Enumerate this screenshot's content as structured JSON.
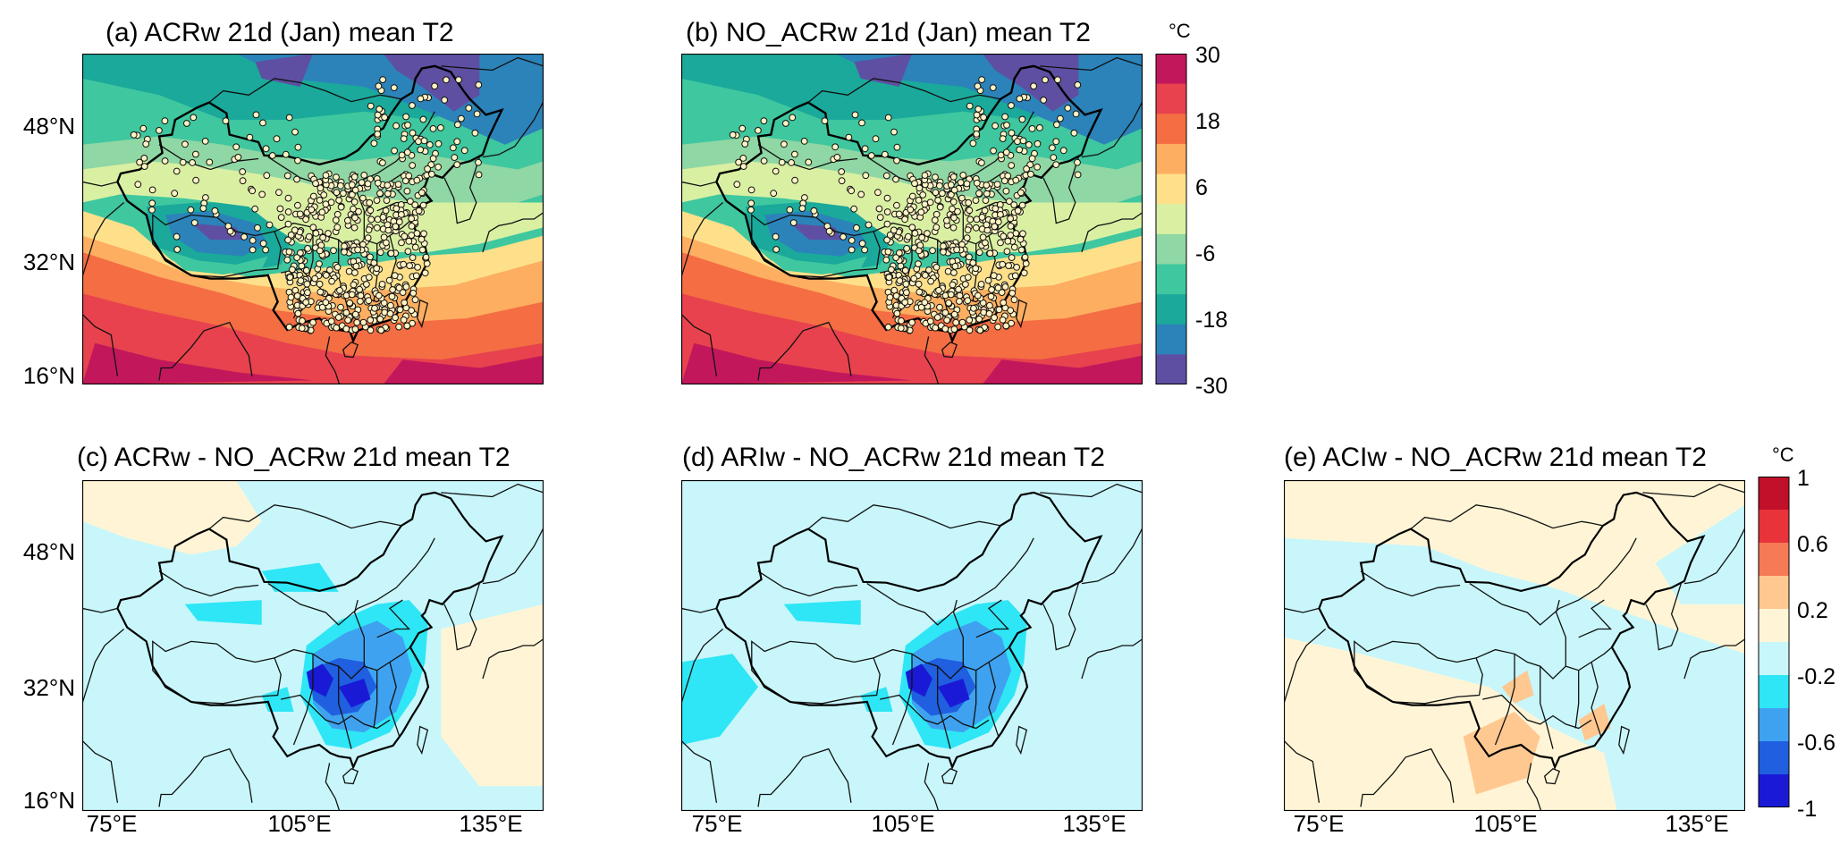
{
  "colors": {
    "abs_levels": [
      "#5e4fa2",
      "#2b83ba",
      "#1aa99a",
      "#3fc79f",
      "#8fd7a4",
      "#d9f0a3",
      "#fee08b",
      "#fdae61",
      "#f46d43",
      "#e8424e",
      "#c2185b"
    ],
    "diff_levels": [
      "#1a1ad6",
      "#1f5fe0",
      "#3fa2f0",
      "#2ee6f5",
      "#c8f6fb",
      "#fff5d6",
      "#ffc891",
      "#f57a55",
      "#e8333a",
      "#c0102a"
    ]
  },
  "chart_data": [
    {
      "type": "heatmap",
      "panel": "a",
      "title": "(a) ACRw 21d (Jan) mean T2",
      "lat_ticks": [
        "48°N",
        "32°N",
        "16°N"
      ],
      "lon_ticks": [],
      "lon_range": [
        68,
        140
      ],
      "lat_range": [
        15,
        55
      ],
      "stations_overlay": true
    },
    {
      "type": "heatmap",
      "panel": "b",
      "title": "(b) NO_ACRw 21d (Jan) mean T2",
      "lat_ticks": [],
      "lon_ticks": [],
      "lon_range": [
        68,
        140
      ],
      "lat_range": [
        15,
        55
      ],
      "stations_overlay": true,
      "colorbar": {
        "unit": "°C",
        "ticks": [
          "30",
          "18",
          "6",
          "-6",
          "-18",
          "-30"
        ],
        "range": [
          -30,
          30
        ]
      }
    },
    {
      "type": "heatmap",
      "panel": "c",
      "title": "(c) ACRw - NO_ACRw 21d mean T2",
      "lat_ticks": [
        "48°N",
        "32°N",
        "16°N"
      ],
      "lon_ticks": [
        "75°E",
        "105°E",
        "135°E"
      ],
      "lon_range": [
        68,
        140
      ],
      "lat_range": [
        15,
        55
      ]
    },
    {
      "type": "heatmap",
      "panel": "d",
      "title": "(d) ARIw - NO_ACRw 21d mean T2",
      "lat_ticks": [],
      "lon_ticks": [
        "75°E",
        "105°E",
        "135°E"
      ],
      "lon_range": [
        68,
        140
      ],
      "lat_range": [
        15,
        55
      ]
    },
    {
      "type": "heatmap",
      "panel": "e",
      "title": "(e) ACIw - NO_ACRw 21d mean T2",
      "lat_ticks": [],
      "lon_ticks": [
        "75°E",
        "105°E",
        "135°E"
      ],
      "lon_range": [
        68,
        140
      ],
      "lat_range": [
        15,
        55
      ],
      "colorbar": {
        "unit": "°C",
        "ticks": [
          "1",
          "0.6",
          "0.2",
          "-0.2",
          "-0.6",
          "-1"
        ],
        "range": [
          -1,
          1
        ]
      }
    }
  ]
}
